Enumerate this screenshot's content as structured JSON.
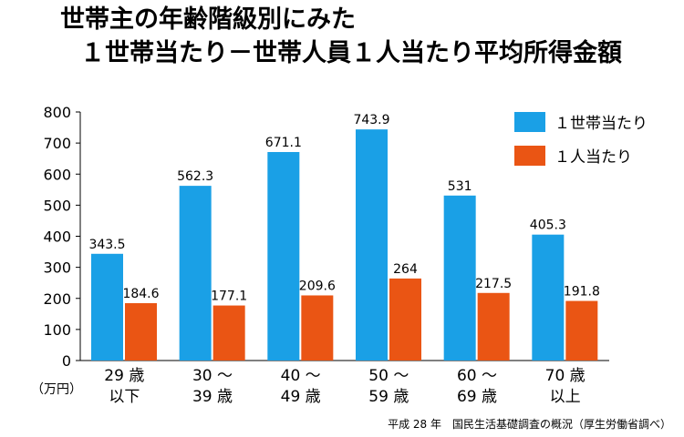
{
  "page": {
    "title_line1": "世帯主の年齢階級別にみた",
    "title_line2": "１世帯当たり－世帯人員１人当たり平均所得金額",
    "source": "平成 28 年　国民生活基礎調査の概況（厚生労働省調べ）"
  },
  "chart_data": {
    "type": "bar",
    "title": "世帯主の年齢階級別にみた １世帯当たり－世帯人員１人当たり平均所得金額",
    "ylabel": "（万円）",
    "ylim": [
      0,
      800
    ],
    "yticks": [
      0,
      100,
      200,
      300,
      400,
      500,
      600,
      700,
      800
    ],
    "grid": false,
    "legend_position": "top-right",
    "categories": [
      [
        "29 歳",
        "以下"
      ],
      [
        "30 〜",
        "39 歳"
      ],
      [
        "40 〜",
        "49 歳"
      ],
      [
        "50 〜",
        "59 歳"
      ],
      [
        "60 〜",
        "69 歳"
      ],
      [
        "70 歳",
        "以上"
      ]
    ],
    "series": [
      {
        "name": "１世帯当たり",
        "color": "#1aa0e6",
        "values": [
          343.5,
          562.3,
          671.1,
          743.9,
          531,
          405.3
        ],
        "labels": [
          "343.5",
          "562.3",
          "671.1",
          "743.9",
          "531",
          "405.3"
        ]
      },
      {
        "name": "１人当たり",
        "color": "#ea5514",
        "values": [
          184.6,
          177.1,
          209.6,
          264,
          217.5,
          191.8
        ],
        "labels": [
          "184.6",
          "177.1",
          "209.6",
          "264",
          "217.5",
          "191.8"
        ]
      }
    ]
  }
}
